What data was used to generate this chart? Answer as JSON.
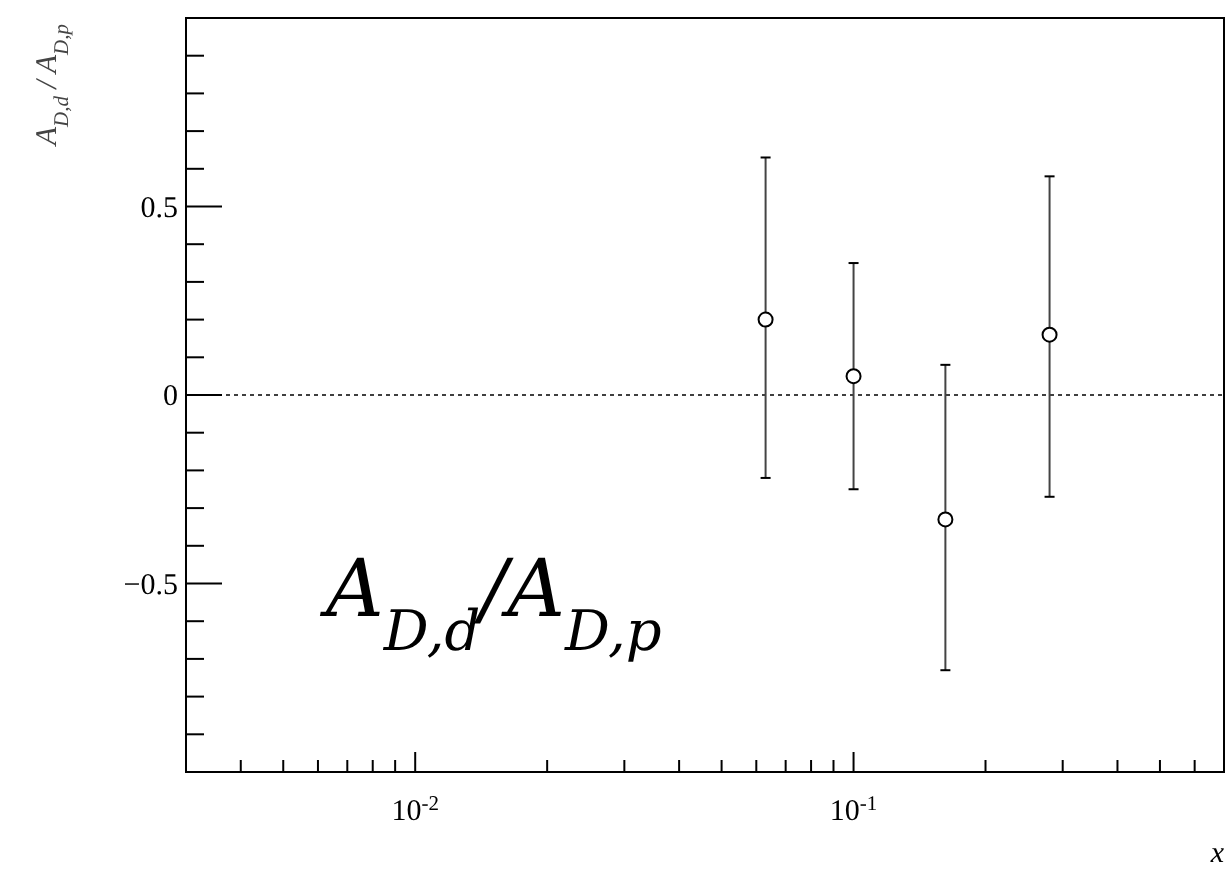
{
  "chart_data": {
    "type": "scatter",
    "ylabel": "A$_{D,d}$ / A$_{D,p}$",
    "xlabel": "x",
    "log": "x",
    "xlim": [
      0.003,
      0.7
    ],
    "ylim": [
      -1,
      1
    ],
    "xticks": [
      {
        "value": 0.004,
        "label": null
      },
      {
        "value": 0.005,
        "label": null
      },
      {
        "value": 0.006,
        "label": null
      },
      {
        "value": 0.007,
        "label": null
      },
      {
        "value": 0.008,
        "label": null
      },
      {
        "value": 0.009,
        "label": null
      },
      {
        "value": 0.01,
        "label": "10$^{-2}$"
      },
      {
        "value": 0.02,
        "label": null
      },
      {
        "value": 0.03,
        "label": null
      },
      {
        "value": 0.04,
        "label": null
      },
      {
        "value": 0.05,
        "label": null
      },
      {
        "value": 0.06,
        "label": null
      },
      {
        "value": 0.07,
        "label": null
      },
      {
        "value": 0.08,
        "label": null
      },
      {
        "value": 0.09,
        "label": null
      },
      {
        "value": 0.1,
        "label": "10$^{-1}$"
      },
      {
        "value": 0.2,
        "label": null
      },
      {
        "value": 0.3,
        "label": null
      },
      {
        "value": 0.4,
        "label": null
      },
      {
        "value": 0.5,
        "label": null
      },
      {
        "value": 0.6,
        "label": null
      }
    ],
    "yticks": [
      {
        "value": -0.9,
        "label": null
      },
      {
        "value": -0.8,
        "label": null
      },
      {
        "value": -0.7,
        "label": null
      },
      {
        "value": -0.6,
        "label": null
      },
      {
        "value": -0.5,
        "label": "−0.5"
      },
      {
        "value": -0.4,
        "label": null
      },
      {
        "value": -0.3,
        "label": null
      },
      {
        "value": -0.2,
        "label": null
      },
      {
        "value": -0.1,
        "label": null
      },
      0,
      {
        "value": 0.1,
        "label": null
      },
      {
        "value": 0.2,
        "label": null
      },
      {
        "value": 0.3,
        "label": null
      },
      {
        "value": 0.4,
        "label": null
      },
      {
        "value": 0.5,
        "label": "0.5"
      },
      {
        "value": 0.6,
        "label": null
      },
      {
        "value": 0.7,
        "label": null
      },
      {
        "value": 0.8,
        "label": null
      },
      {
        "value": 0.9,
        "label": null
      }
    ],
    "series": [
      {
        "color": "#000000",
        "x": [
          0.063,
          0.1,
          0.162,
          0.28
        ],
        "values": [
          0.2,
          0.05,
          -0.33,
          0.16
        ],
        "errors": [
          [
            -0.22,
            0.63
          ],
          [
            -0.25,
            0.35
          ],
          [
            -0.73,
            0.08
          ],
          [
            -0.27,
            0.58
          ]
        ]
      }
    ],
    "marker": "circle",
    "grid": false,
    "ref_lines": [
      {
        "axis": "y",
        "value": 0,
        "line_style": "dotted",
        "color": "#000000"
      }
    ],
    "annotations": [
      "A$_{D,d}$/A$_{D,p}$"
    ]
  }
}
